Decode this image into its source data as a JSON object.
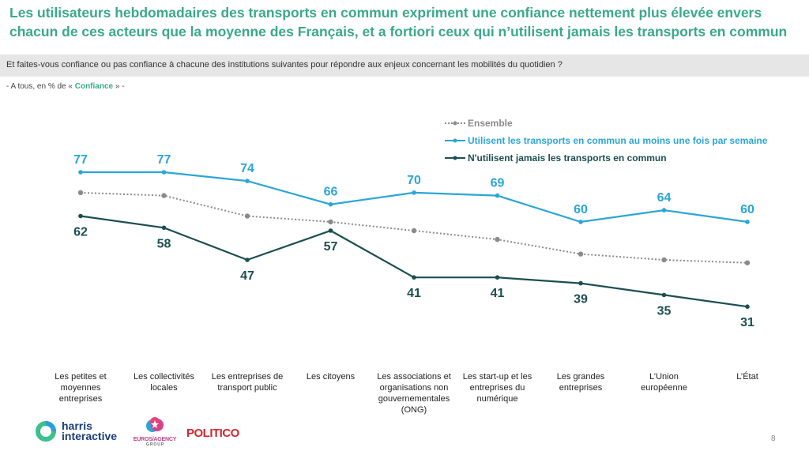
{
  "title": "Les utilisateurs hebdomadaires des transports en commun expriment une confiance nettement plus élevée envers chacun de ces acteurs que la moyenne des Français, et a fortiori ceux qui n’utilisent jamais les transports en commun",
  "question": "Et faites-vous confiance ou pas confiance à chacune des institutions suivantes pour répondre aux enjeux concernant les mobilités du quotidien ?",
  "base": {
    "prefix": "- A tous, en % de « ",
    "highlight": "Confiance",
    "suffix": " » -"
  },
  "colors": {
    "title": "#3aa88a",
    "ensemble": "#8a8a8a",
    "weekly": "#2aa6d6",
    "never": "#1b4f52"
  },
  "chart_data": {
    "type": "line",
    "title": "",
    "xlabel": "",
    "ylabel": "% de Confiance",
    "ylim": [
      25,
      85
    ],
    "grid": false,
    "legend_position": "top-right",
    "categories": [
      "Les petites et moyennes entreprises",
      "Les collectivités locales",
      "Les entreprises de transport public",
      "Les citoyens",
      "Les associations et organisations non gouvernementales (ONG)",
      "Les start-up et les entreprises du numérique",
      "Les grandes entreprises",
      "L’Union européenne",
      "L’État"
    ],
    "category_lines": [
      [
        "Les petites et",
        "moyennes",
        "entreprises"
      ],
      [
        "Les collectivités",
        "locales"
      ],
      [
        "Les entreprises de",
        "transport public"
      ],
      [
        "Les citoyens"
      ],
      [
        "Les associations et",
        "organisations non",
        "gouvernementales",
        "(ONG)"
      ],
      [
        "Les start-up et les",
        "entreprises du",
        "numérique"
      ],
      [
        "Les grandes",
        "entreprises"
      ],
      [
        "L’Union",
        "européenne"
      ],
      [
        "L’État"
      ]
    ],
    "series": [
      {
        "name": "Ensemble",
        "style": "dotted",
        "color": "#8a8a8a",
        "labeled": false,
        "values": [
          70,
          69,
          62,
          60,
          57,
          54,
          49,
          47,
          46
        ]
      },
      {
        "name": "Utilisent les transports en commun au moins une fois par semaine",
        "style": "solid",
        "color": "#2aa6d6",
        "labeled": true,
        "label_pos": "above",
        "values": [
          77,
          77,
          74,
          66,
          70,
          69,
          60,
          64,
          60
        ]
      },
      {
        "name": "N'utilisent jamais les transports en commun",
        "style": "solid",
        "color": "#1b4f52",
        "labeled": true,
        "label_pos": "below",
        "values": [
          62,
          58,
          47,
          57,
          41,
          41,
          39,
          35,
          31
        ]
      }
    ]
  },
  "logos": {
    "harris_line1": "harris",
    "harris_line2": "interactive",
    "euros": "EUROS/AGENCY",
    "euros_sub": "G R O U P",
    "politico": "POLITICO"
  },
  "page_number": "8"
}
